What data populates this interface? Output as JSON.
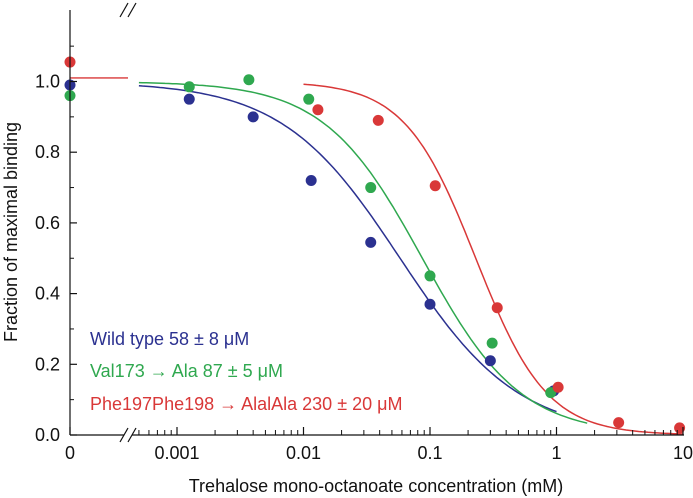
{
  "chart_data": {
    "type": "scatter",
    "title": "",
    "xlabel": "Trehalose mono-octanoate concentration (mM)",
    "ylabel": "Fraction of maximal binding",
    "x_scale": "log",
    "x_axis_break": "between 0 and 0.001",
    "xlim": [
      0.00042,
      10
    ],
    "ylim": [
      0,
      1.2
    ],
    "x_ticks": [
      {
        "value": 0,
        "label": "0"
      },
      {
        "value": 0.001,
        "label": "0.001"
      },
      {
        "value": 0.01,
        "label": "0.01"
      },
      {
        "value": 0.1,
        "label": "0.1"
      },
      {
        "value": 1,
        "label": "1"
      },
      {
        "value": 10,
        "label": "10"
      }
    ],
    "y_ticks": [
      {
        "value": 0,
        "label": "0.0"
      },
      {
        "value": 0.2,
        "label": "0.2"
      },
      {
        "value": 0.4,
        "label": "0.4"
      },
      {
        "value": 0.6,
        "label": "0.6"
      },
      {
        "value": 0.8,
        "label": "0.8"
      },
      {
        "value": 1.0,
        "label": "1.0"
      }
    ],
    "grid": false,
    "legend_position": "bottom-left",
    "series": [
      {
        "name": "Wild type 58 ± 8 μM",
        "color": "#2b3190",
        "ic50_mM": 0.058,
        "hill": 0.93,
        "fit_range_mM": [
          0.0005,
          1.0
        ],
        "points": [
          {
            "x": 0,
            "y": 0.99
          },
          {
            "x": 0.00125,
            "y": 0.95
          },
          {
            "x": 0.004,
            "y": 0.9
          },
          {
            "x": 0.0115,
            "y": 0.72
          },
          {
            "x": 0.034,
            "y": 0.545
          },
          {
            "x": 0.1,
            "y": 0.37
          },
          {
            "x": 0.3,
            "y": 0.21
          },
          {
            "x": 0.95,
            "y": 0.125
          }
        ]
      },
      {
        "name": "Val173 → Ala 87 ± 5 μM",
        "color": "#2fa84f",
        "ic50_mM": 0.087,
        "hill": 1.12,
        "fit_range_mM": [
          0.0005,
          1.75
        ],
        "points": [
          {
            "x": 0,
            "y": 0.96
          },
          {
            "x": 0.00125,
            "y": 0.985
          },
          {
            "x": 0.0037,
            "y": 1.005
          },
          {
            "x": 0.011,
            "y": 0.95
          },
          {
            "x": 0.034,
            "y": 0.7
          },
          {
            "x": 0.1,
            "y": 0.45
          },
          {
            "x": 0.31,
            "y": 0.26
          },
          {
            "x": 0.9,
            "y": 0.12
          }
        ]
      },
      {
        "name": "Phe197Phe198 → AlalAla 230 ± 20 μM",
        "color": "#d93838",
        "ic50_mM": 0.23,
        "hill": 1.55,
        "fit_range_mM": [
          0.01,
          10
        ],
        "points": [
          {
            "x": 0,
            "y": 1.055
          },
          {
            "x": 0.013,
            "y": 0.92
          },
          {
            "x": 0.039,
            "y": 0.89
          },
          {
            "x": 0.11,
            "y": 0.705
          },
          {
            "x": 0.34,
            "y": 0.36
          },
          {
            "x": 1.03,
            "y": 0.135
          },
          {
            "x": 3.1,
            "y": 0.035
          },
          {
            "x": 9.4,
            "y": 0.02
          }
        ]
      }
    ],
    "plateau_line": {
      "value": 1.01,
      "color": "#d93838"
    }
  }
}
